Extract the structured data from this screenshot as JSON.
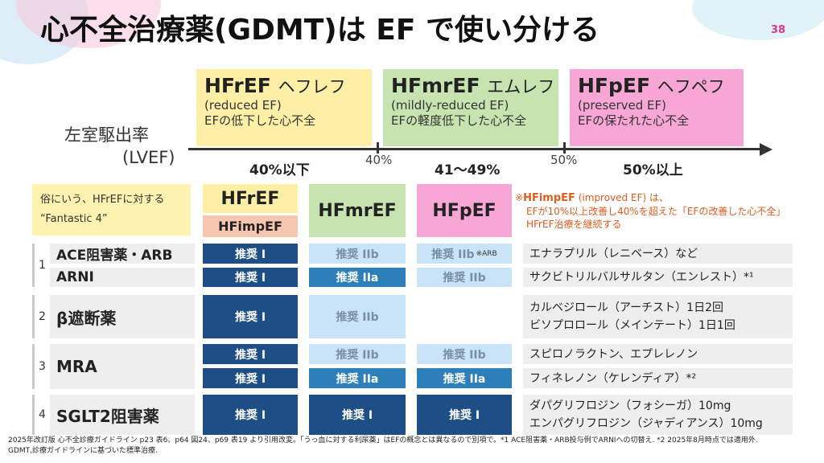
{
  "title": "心不全治療薬(GDMT)は EF で使い分ける",
  "page_number": "38",
  "lvef": {
    "line1": "左室駆出率",
    "line2": "(LVEF)"
  },
  "phases": [
    {
      "name": "HFrEF",
      "kana": "ヘフレフ",
      "sub1": "(reduced EF)",
      "sub2": "EFの低下した心不全",
      "color": "#fdf0a6"
    },
    {
      "name": "HFmrEF",
      "kana": "エムレフ",
      "sub1": "(mildly-reduced EF)",
      "sub2": "EFの軽度低下した心不全",
      "color": "#c6e3b0"
    },
    {
      "name": "HFpEF",
      "kana": "ヘフペフ",
      "sub1": "(preserved EF)",
      "sub2": "EFの保たれた心不全",
      "color": "#f7a6d6"
    }
  ],
  "axis": {
    "tick1": "40%",
    "tick2": "50%",
    "range1": "40%以下",
    "range2": "41〜49%",
    "range3": "50%以上"
  },
  "fantastic4": {
    "line1": "俗にいう、HFrEFに対する",
    "line2": "“Fantastic 4”"
  },
  "col_headers": {
    "hfref": "HFrEF",
    "hfimpef": "HFimpEF",
    "hfmref": "HFmrEF",
    "hfpef": "HFpEF"
  },
  "note": {
    "prefix": "※",
    "title": "HFimpEF",
    "title_en": "(improved EF) は、",
    "line2": "EFが10%以上改善し40%を超えた「EFの改善した心不全」",
    "line3": "HFrEF治療を継続する"
  },
  "rows": [
    {
      "num": "1",
      "drug": "ACE阻害薬・ARB",
      "c1": "推奨 I",
      "c2": "推奨 IIb",
      "c3": "推奨 IIb",
      "c3_note": "※ARB",
      "agent": [
        "エナラプリル（レニベース）など"
      ]
    },
    {
      "num": "",
      "drug": "ARNI",
      "c1": "推奨 I",
      "c2": "推奨 IIa",
      "c3": "推奨 IIb",
      "agent": [
        "サクビトリルバルサルタン（エンレスト）*¹"
      ]
    },
    {
      "num": "2",
      "drug": "β遮断薬",
      "c1": "推奨 I",
      "c2": "推奨 IIb",
      "c3": "",
      "agent": [
        "カルベジロール（アーチスト）1日2回",
        "ビソプロロール（メインテート）1日1回"
      ]
    },
    {
      "num": "3",
      "drug": "MRA",
      "c1a": "推奨 I",
      "c1b": "推奨 I",
      "c2a": "推奨 IIb",
      "c2b": "推奨 IIa",
      "c3a": "推奨 IIb",
      "c3b": "推奨 IIa",
      "agent": [
        "スピロノラクトン、エプレレノン",
        "フィネレノン（ケレンディア）*²"
      ]
    },
    {
      "num": "4",
      "drug": "SGLT2阻害薬",
      "c1": "推奨 I",
      "c2": "推奨 I",
      "c3": "推奨 I",
      "agent": [
        "ダパグリフロジン（フォシーガ）10mg",
        "エンパグリフロジン（ジャディアンス）10mg"
      ]
    }
  ],
  "footnote": {
    "line1": "2025年改訂版 心不全診療ガイドライン p23 表6、p64 図24、p69 表19 より引用改変。「うっ血に対する利尿薬」はEFの概念とは異なるので別項で。*1 ACE阻害薬・ARB投与例でARNIへの切替え. *2 2025年8月時点では適用外.",
    "line2": "GDMT,診療ガイドラインに基づいた標準治療."
  },
  "colors": {
    "dark": "#1d4f86",
    "mid": "#2d7fb9",
    "light": "#c9e4f7",
    "accent": "#e25c1d"
  }
}
